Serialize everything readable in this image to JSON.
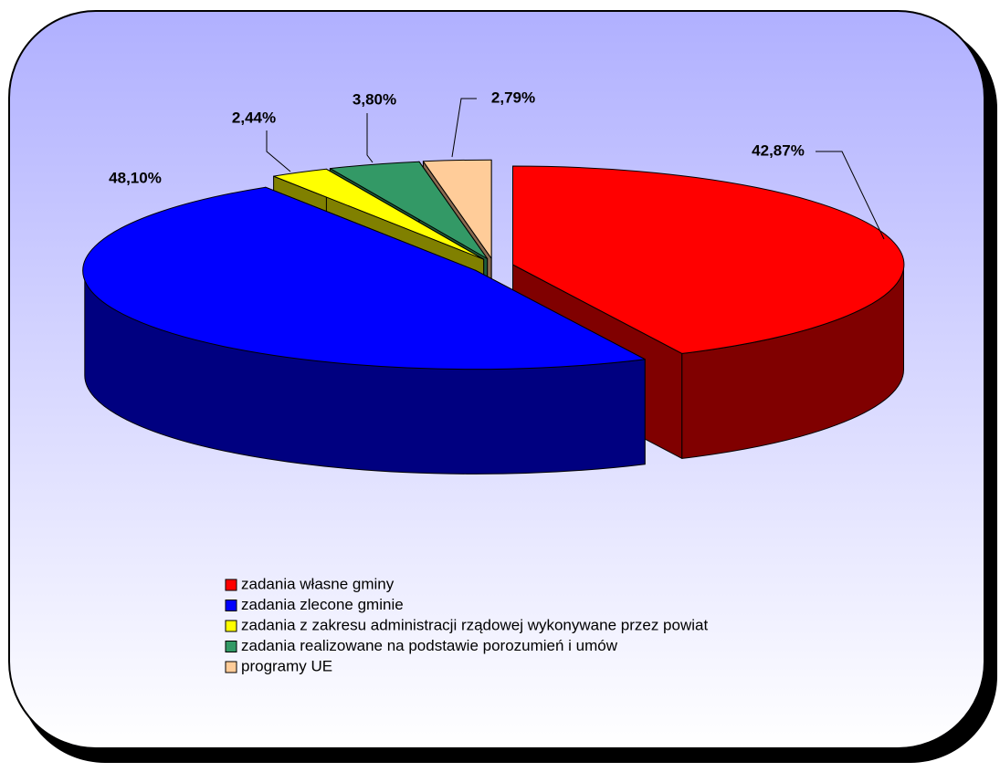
{
  "chart_data": {
    "type": "pie",
    "categories": [
      "zadania własne gminy",
      "zadania zlecone gminie",
      "zadania z zakresu administracji rządowej wykonywane przez powiat",
      "zadania realizowane na podstawie porozumień i umów",
      "programy UE"
    ],
    "values": [
      42.87,
      48.1,
      2.44,
      3.8,
      2.79
    ],
    "value_labels": [
      "42,87%",
      "48,10%",
      "2,44%",
      "3,80%",
      "2,79%"
    ],
    "colors": [
      "#ff0000",
      "#0000ff",
      "#ffff00",
      "#339966",
      "#ffcc99"
    ],
    "side_colors": [
      "#800000",
      "#000080",
      "#808000",
      "#1f5c3d",
      "#8a6a50"
    ],
    "legend": "bottom"
  }
}
